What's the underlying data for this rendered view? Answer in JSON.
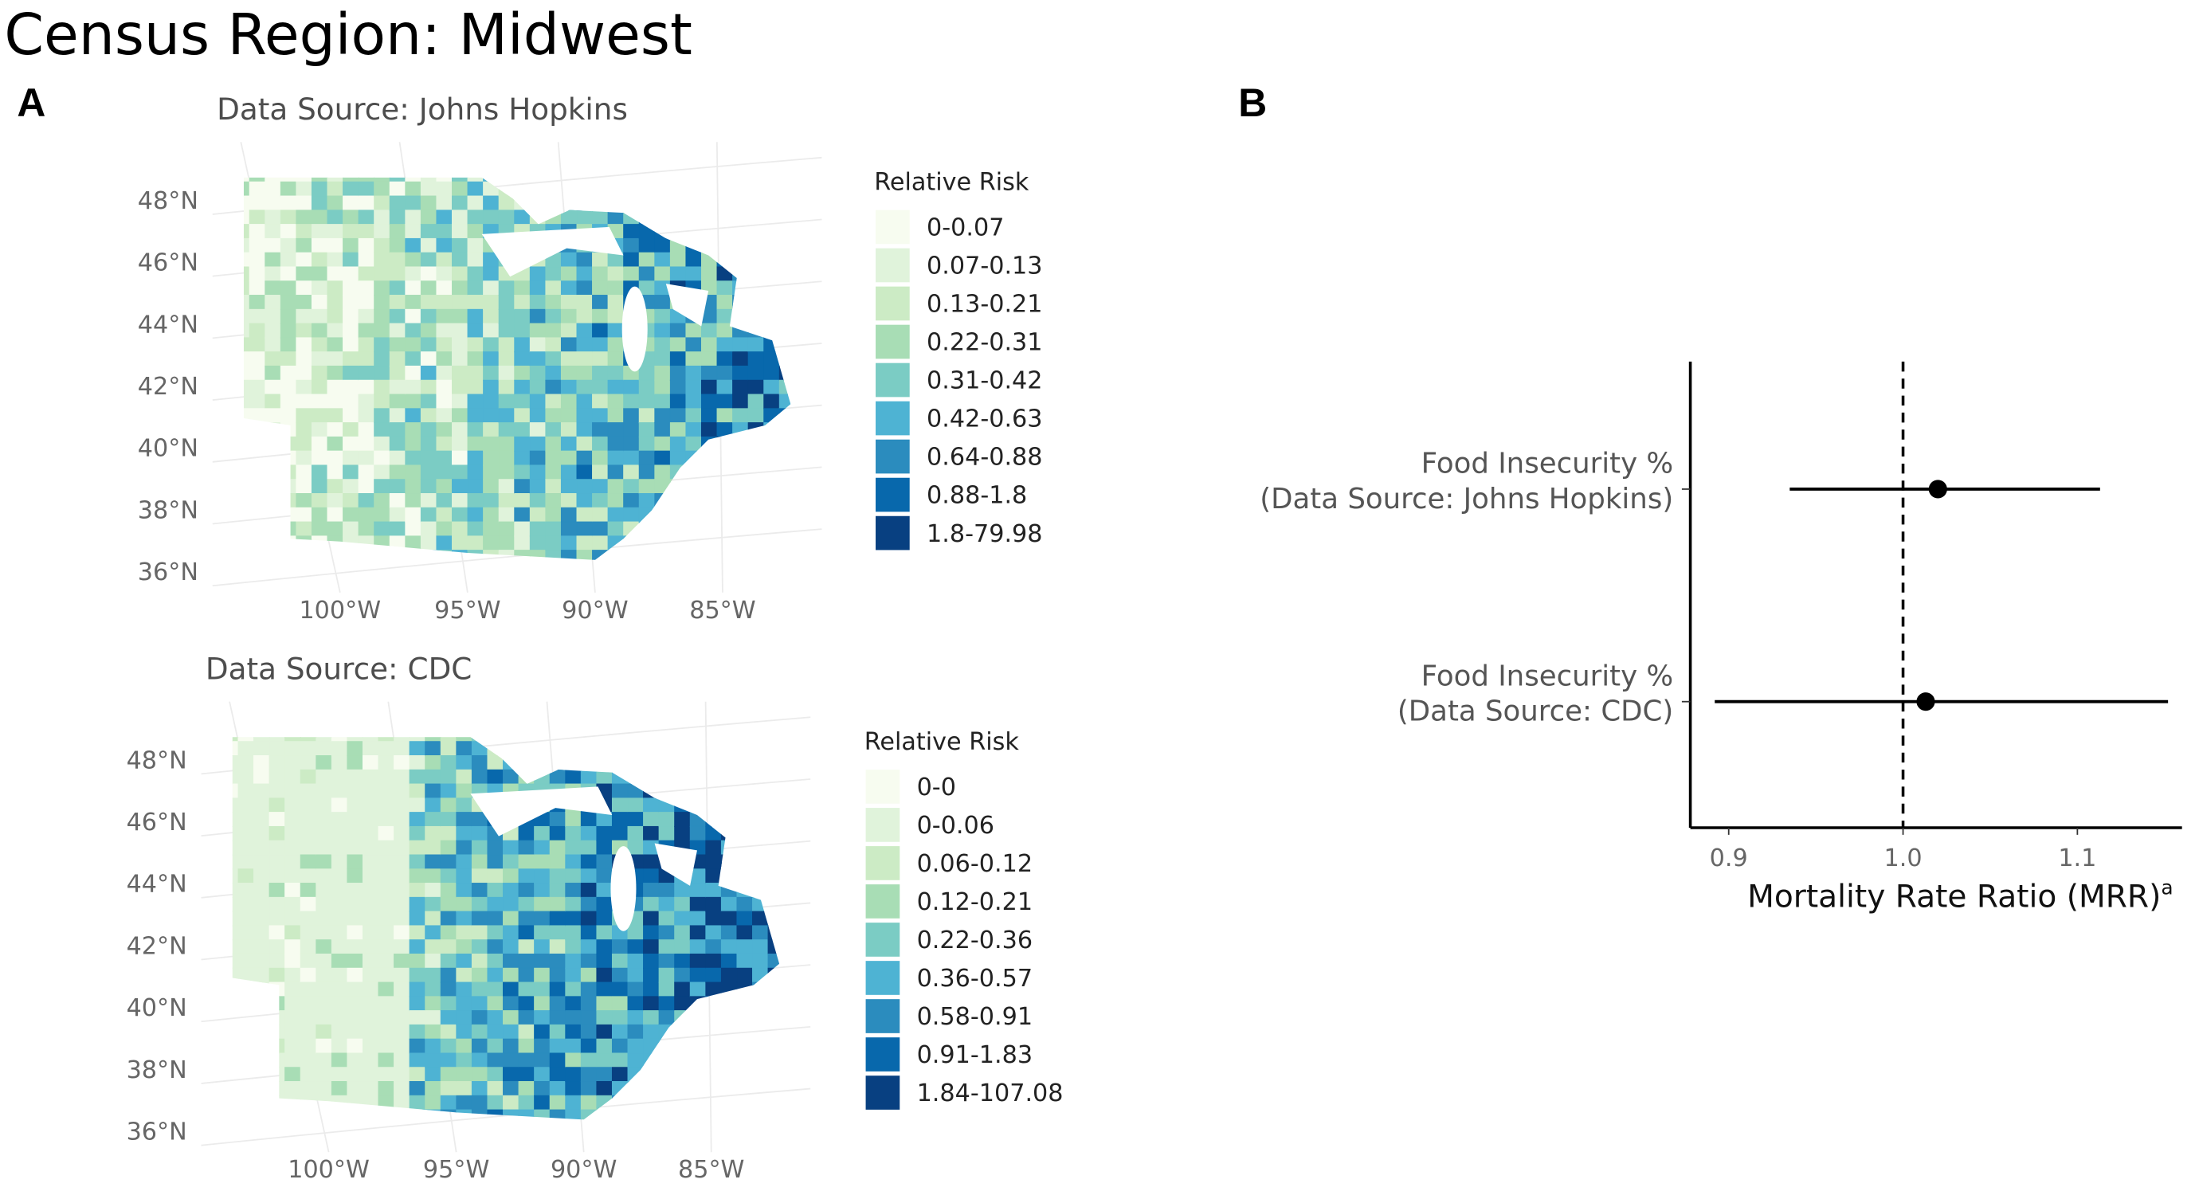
{
  "title": "Census Region: Midwest",
  "panel_a": {
    "label": "A",
    "lat_labels": [
      "48°N",
      "46°N",
      "44°N",
      "42°N",
      "40°N",
      "38°N",
      "36°N"
    ],
    "lon_labels": [
      "100°W",
      "95°W",
      "90°W",
      "85°W"
    ],
    "maps": [
      {
        "subtitle": "Data Source: Johns Hopkins",
        "legend_title": "Relative Risk",
        "legend": [
          {
            "label": "0-0.07",
            "color": "#f7fcf0"
          },
          {
            "label": "0.07-0.13",
            "color": "#e0f3db"
          },
          {
            "label": "0.13-0.21",
            "color": "#ccebc5"
          },
          {
            "label": "0.22-0.31",
            "color": "#a8ddb5"
          },
          {
            "label": "0.31-0.42",
            "color": "#7bccc4"
          },
          {
            "label": "0.42-0.63",
            "color": "#4eb3d3"
          },
          {
            "label": "0.64-0.88",
            "color": "#2b8cbe"
          },
          {
            "label": "0.88-1.8",
            "color": "#0868ac"
          },
          {
            "label": "1.8-79.98",
            "color": "#084081"
          }
        ]
      },
      {
        "subtitle": "Data Source: CDC",
        "legend_title": "Relative Risk",
        "legend": [
          {
            "label": "0-0",
            "color": "#f7fcf0"
          },
          {
            "label": "0-0.06",
            "color": "#e0f3db"
          },
          {
            "label": "0.06-0.12",
            "color": "#ccebc5"
          },
          {
            "label": "0.12-0.21",
            "color": "#a8ddb5"
          },
          {
            "label": "0.22-0.36",
            "color": "#7bccc4"
          },
          {
            "label": "0.36-0.57",
            "color": "#4eb3d3"
          },
          {
            "label": "0.58-0.91",
            "color": "#2b8cbe"
          },
          {
            "label": "0.91-1.83",
            "color": "#0868ac"
          },
          {
            "label": "1.84-107.08",
            "color": "#084081"
          }
        ]
      }
    ]
  },
  "chart_data": {
    "type": "forest",
    "panel": "B",
    "categories": [
      [
        "Food Insecurity %",
        "(Data Source: Johns Hopkins)"
      ],
      [
        "Food Insecurity %",
        "(Data Source: CDC)"
      ]
    ],
    "values": [
      1.02,
      1.013
    ],
    "lower": [
      0.935,
      0.892
    ],
    "upper": [
      1.113,
      1.152
    ],
    "xlim": [
      0.878,
      1.16
    ],
    "xticks": [
      0.9,
      {
        "value": 1,
        "label": "1.0"
      },
      1.1
    ],
    "reference_line": 1,
    "xlabel": "Mortality Rate Ratio (MRR)",
    "xlabel_sup": "a",
    "color": "#000000"
  }
}
